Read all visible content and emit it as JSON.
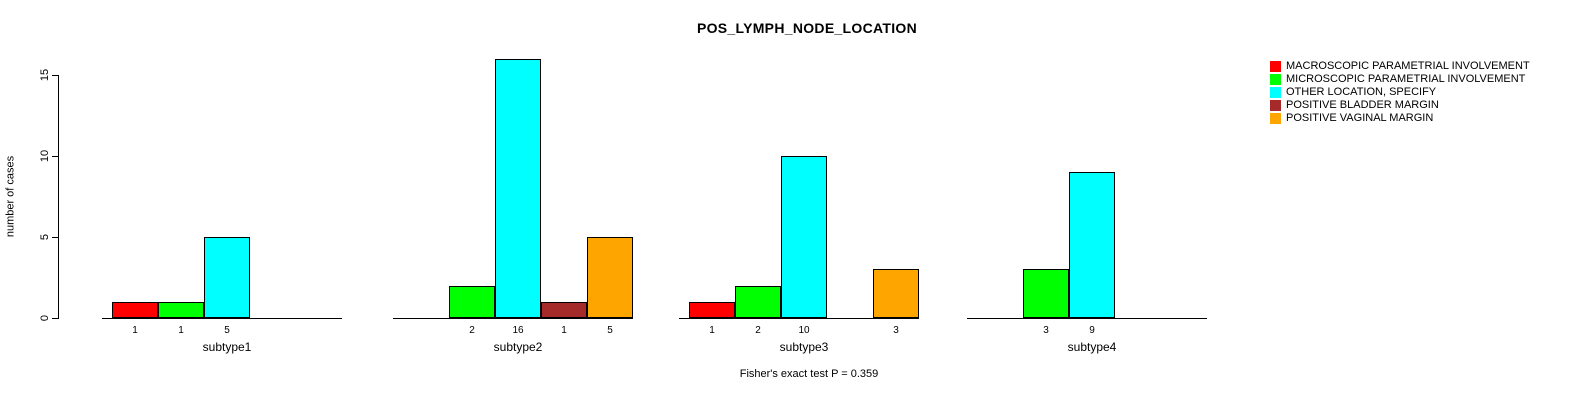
{
  "page": {
    "background": "#FFFFFF"
  },
  "header": {
    "title": "POS_LYMPH_NODE_LOCATION"
  },
  "footer": {
    "caption": "Fisher's exact test P = 0.359"
  },
  "y_axis": {
    "label": "number of cases",
    "ticks": [
      0,
      5,
      10,
      15
    ]
  },
  "legend": {
    "position": "right",
    "items": [
      {
        "label": "MACROSCOPIC PARAMETRIAL INVOLVEMENT",
        "color": "#FF0000"
      },
      {
        "label": "MICROSCOPIC PARAMETRIAL INVOLVEMENT",
        "color": "#00FF00"
      },
      {
        "label": "OTHER LOCATION, SPECIFY",
        "color": "#00FFFF"
      },
      {
        "label": "POSITIVE BLADDER MARGIN",
        "color": "#A52A2A"
      },
      {
        "label": "POSITIVE VAGINAL MARGIN",
        "color": "#FFA500"
      }
    ]
  },
  "chart_data": {
    "type": "bar",
    "title": "POS_LYMPH_NODE_LOCATION",
    "xlabel": "",
    "ylabel": "number of cases",
    "ylim": [
      0,
      16
    ],
    "yticks": [
      0,
      5,
      10,
      15
    ],
    "grid": false,
    "legend_position": "right",
    "bar_value_labels_shown_for_nonzero_only": true,
    "categories": [
      "subtype1",
      "subtype2",
      "subtype3",
      "subtype4"
    ],
    "series": [
      {
        "name": "MACROSCOPIC PARAMETRIAL INVOLVEMENT",
        "color": "#FF0000",
        "values": [
          1,
          0,
          1,
          0
        ]
      },
      {
        "name": "MICROSCOPIC PARAMETRIAL INVOLVEMENT",
        "color": "#00FF00",
        "values": [
          1,
          2,
          2,
          3
        ]
      },
      {
        "name": "OTHER LOCATION, SPECIFY",
        "color": "#00FFFF",
        "values": [
          5,
          16,
          10,
          9
        ]
      },
      {
        "name": "POSITIVE BLADDER MARGIN",
        "color": "#A52A2A",
        "values": [
          0,
          1,
          0,
          0
        ]
      },
      {
        "name": "POSITIVE VAGINAL MARGIN",
        "color": "#FFA500",
        "values": [
          0,
          5,
          3,
          0
        ]
      }
    ],
    "annotation": "Fisher's exact test P = 0.359"
  }
}
